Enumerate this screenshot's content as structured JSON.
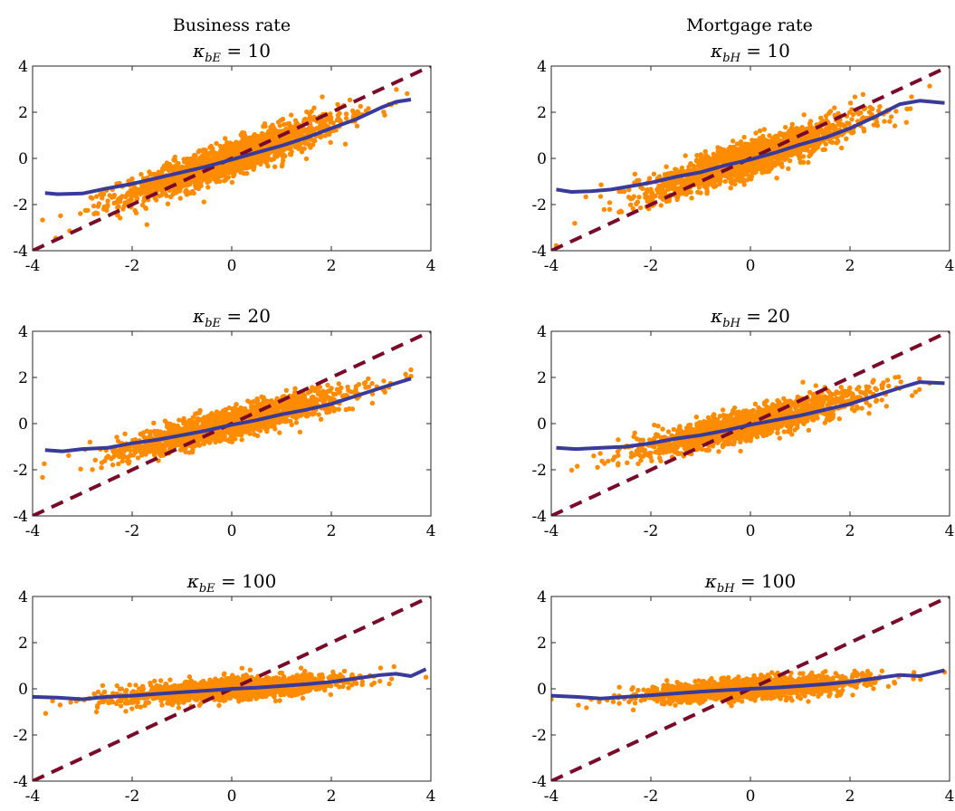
{
  "column_titles": [
    "Business rate",
    "Mortgage rate"
  ],
  "colors": {
    "scatter": "#ff8c00",
    "fit": "#3a3a9a",
    "diagonal": "#7a0a2a",
    "axis": "#262626"
  },
  "chart_data": [
    {
      "type": "scatter",
      "title": {
        "symbol": "κ",
        "subscript": "bE",
        "relation": " = ",
        "value": "10"
      },
      "xlim": [
        -4,
        4
      ],
      "ylim": [
        -4,
        4
      ],
      "xticks": [
        "-4",
        "-2",
        "0",
        "2",
        "4"
      ],
      "yticks": [
        "4",
        "2",
        "0",
        "-2",
        "-4"
      ],
      "diagonal": [
        [
          -4,
          -4
        ],
        [
          4,
          4
        ]
      ],
      "scatter_profile": {
        "x_range": [
          -3.8,
          3.6
        ],
        "slope": 0.75,
        "spread": 0.38
      },
      "fit_line": [
        [
          -3.75,
          -1.5
        ],
        [
          -3.5,
          -1.55
        ],
        [
          -3.0,
          -1.52
        ],
        [
          -2.5,
          -1.3
        ],
        [
          -2.0,
          -1.1
        ],
        [
          -1.5,
          -0.85
        ],
        [
          -1.0,
          -0.6
        ],
        [
          -0.5,
          -0.35
        ],
        [
          0,
          -0.05
        ],
        [
          0.5,
          0.25
        ],
        [
          1.0,
          0.55
        ],
        [
          1.5,
          0.9
        ],
        [
          2.0,
          1.3
        ],
        [
          2.5,
          1.7
        ],
        [
          3.0,
          2.2
        ],
        [
          3.3,
          2.45
        ],
        [
          3.6,
          2.55
        ]
      ]
    },
    {
      "type": "scatter",
      "title": {
        "symbol": "κ",
        "subscript": "bH",
        "relation": " = ",
        "value": "10"
      },
      "xlim": [
        -4,
        4
      ],
      "ylim": [
        -4,
        4
      ],
      "xticks": [
        "-4",
        "-2",
        "0",
        "2",
        "4"
      ],
      "yticks": [
        "4",
        "2",
        "0",
        "-2",
        "-4"
      ],
      "diagonal": [
        [
          -4,
          -4
        ],
        [
          4,
          4
        ]
      ],
      "scatter_profile": {
        "x_range": [
          -3.9,
          3.6
        ],
        "slope": 0.72,
        "spread": 0.38
      },
      "fit_line": [
        [
          -3.9,
          -1.35
        ],
        [
          -3.6,
          -1.45
        ],
        [
          -3.2,
          -1.42
        ],
        [
          -2.8,
          -1.35
        ],
        [
          -2.4,
          -1.2
        ],
        [
          -2.0,
          -1.05
        ],
        [
          -1.5,
          -0.8
        ],
        [
          -1.0,
          -0.6
        ],
        [
          -0.5,
          -0.3
        ],
        [
          0,
          -0.05
        ],
        [
          0.5,
          0.25
        ],
        [
          1.0,
          0.6
        ],
        [
          1.5,
          0.9
        ],
        [
          2.0,
          1.3
        ],
        [
          2.5,
          1.8
        ],
        [
          3.0,
          2.35
        ],
        [
          3.4,
          2.5
        ],
        [
          3.9,
          2.4
        ]
      ]
    },
    {
      "type": "scatter",
      "title": {
        "symbol": "κ",
        "subscript": "bE",
        "relation": " = ",
        "value": "20"
      },
      "xlim": [
        -4,
        4
      ],
      "ylim": [
        -4,
        4
      ],
      "xticks": [
        "-4",
        "-2",
        "0",
        "2",
        "4"
      ],
      "yticks": [
        "4",
        "2",
        "0",
        "-2",
        "-4"
      ],
      "diagonal": [
        [
          -4,
          -4
        ],
        [
          4,
          4
        ]
      ],
      "scatter_profile": {
        "x_range": [
          -3.8,
          3.6
        ],
        "slope": 0.55,
        "spread": 0.32
      },
      "fit_line": [
        [
          -3.75,
          -1.15
        ],
        [
          -3.4,
          -1.2
        ],
        [
          -3.0,
          -1.1
        ],
        [
          -2.5,
          -1.05
        ],
        [
          -2.0,
          -0.85
        ],
        [
          -1.5,
          -0.7
        ],
        [
          -1.0,
          -0.5
        ],
        [
          -0.5,
          -0.3
        ],
        [
          0,
          -0.05
        ],
        [
          0.5,
          0.15
        ],
        [
          1.0,
          0.4
        ],
        [
          1.5,
          0.6
        ],
        [
          2.0,
          0.85
        ],
        [
          2.5,
          1.2
        ],
        [
          3.0,
          1.55
        ],
        [
          3.3,
          1.75
        ],
        [
          3.6,
          1.95
        ]
      ]
    },
    {
      "type": "scatter",
      "title": {
        "symbol": "κ",
        "subscript": "bH",
        "relation": " = ",
        "value": "20"
      },
      "xlim": [
        -4,
        4
      ],
      "ylim": [
        -4,
        4
      ],
      "xticks": [
        "-4",
        "-2",
        "0",
        "2",
        "4"
      ],
      "yticks": [
        "4",
        "2",
        "0",
        "-2",
        "-4"
      ],
      "diagonal": [
        [
          -4,
          -4
        ],
        [
          4,
          4
        ]
      ],
      "scatter_profile": {
        "x_range": [
          -3.9,
          3.6
        ],
        "slope": 0.52,
        "spread": 0.32
      },
      "fit_line": [
        [
          -3.9,
          -1.05
        ],
        [
          -3.5,
          -1.1
        ],
        [
          -3.0,
          -1.05
        ],
        [
          -2.5,
          -1.0
        ],
        [
          -2.0,
          -0.85
        ],
        [
          -1.5,
          -0.65
        ],
        [
          -1.0,
          -0.5
        ],
        [
          -0.5,
          -0.3
        ],
        [
          0,
          -0.05
        ],
        [
          0.5,
          0.15
        ],
        [
          1.0,
          0.35
        ],
        [
          1.5,
          0.6
        ],
        [
          2.0,
          0.85
        ],
        [
          2.5,
          1.2
        ],
        [
          3.0,
          1.55
        ],
        [
          3.4,
          1.8
        ],
        [
          3.9,
          1.75
        ]
      ]
    },
    {
      "type": "scatter",
      "title": {
        "symbol": "κ",
        "subscript": "bE",
        "relation": " = ",
        "value": "100"
      },
      "xlim": [
        -4,
        4
      ],
      "ylim": [
        -4,
        4
      ],
      "xticks": [
        "-4",
        "-2",
        "0",
        "2",
        "4"
      ],
      "yticks": [
        "4",
        "2",
        "0",
        "-2",
        "-4"
      ],
      "diagonal": [
        [
          -4,
          -4
        ],
        [
          4,
          4
        ]
      ],
      "scatter_profile": {
        "x_range": [
          -4.0,
          3.9
        ],
        "slope": 0.15,
        "spread": 0.22
      },
      "fit_line": [
        [
          -4.0,
          -0.35
        ],
        [
          -3.5,
          -0.38
        ],
        [
          -3.0,
          -0.45
        ],
        [
          -2.5,
          -0.35
        ],
        [
          -2.0,
          -0.3
        ],
        [
          -1.5,
          -0.22
        ],
        [
          -1.0,
          -0.15
        ],
        [
          -0.5,
          -0.08
        ],
        [
          0,
          0.0
        ],
        [
          0.5,
          0.05
        ],
        [
          1.0,
          0.12
        ],
        [
          1.5,
          0.2
        ],
        [
          2.0,
          0.3
        ],
        [
          2.5,
          0.45
        ],
        [
          3.0,
          0.6
        ],
        [
          3.3,
          0.65
        ],
        [
          3.6,
          0.55
        ],
        [
          3.9,
          0.85
        ]
      ]
    },
    {
      "type": "scatter",
      "title": {
        "symbol": "κ",
        "subscript": "bH",
        "relation": " = ",
        "value": "100"
      },
      "xlim": [
        -4,
        4
      ],
      "ylim": [
        -4,
        4
      ],
      "xticks": [
        "-4",
        "-2",
        "0",
        "2",
        "4"
      ],
      "yticks": [
        "4",
        "2",
        "0",
        "-2",
        "-4"
      ],
      "diagonal": [
        [
          -4,
          -4
        ],
        [
          4,
          4
        ]
      ],
      "scatter_profile": {
        "x_range": [
          -4.0,
          3.9
        ],
        "slope": 0.15,
        "spread": 0.22
      },
      "fit_line": [
        [
          -4.0,
          -0.3
        ],
        [
          -3.5,
          -0.35
        ],
        [
          -3.0,
          -0.42
        ],
        [
          -2.5,
          -0.35
        ],
        [
          -2.0,
          -0.28
        ],
        [
          -1.5,
          -0.2
        ],
        [
          -1.0,
          -0.12
        ],
        [
          -0.5,
          -0.06
        ],
        [
          0,
          0.0
        ],
        [
          0.5,
          0.05
        ],
        [
          1.0,
          0.12
        ],
        [
          1.5,
          0.2
        ],
        [
          2.0,
          0.3
        ],
        [
          2.5,
          0.45
        ],
        [
          3.0,
          0.6
        ],
        [
          3.4,
          0.55
        ],
        [
          3.9,
          0.8
        ]
      ]
    }
  ]
}
